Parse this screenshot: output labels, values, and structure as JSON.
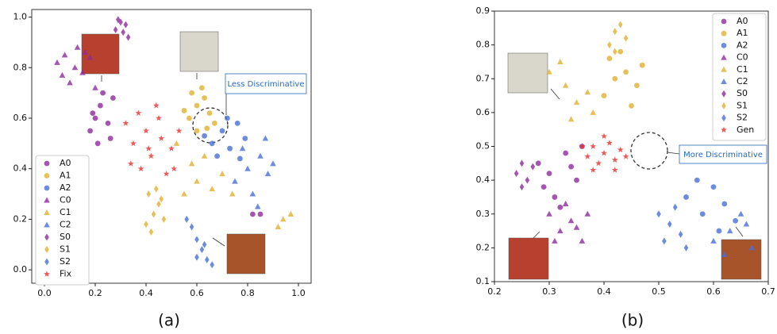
{
  "chart_data": [
    {
      "type": "scatter",
      "panel_label": "(a)",
      "annotation": "Less Discriminative",
      "legend": "lower left",
      "xlim": [
        -0.05,
        1.05
      ],
      "ylim": [
        -0.053,
        1.03
      ],
      "xticks": [
        {
          "value": 0,
          "label": "0.0"
        },
        {
          "value": 0.2,
          "label": "0.2"
        },
        {
          "value": 0.4,
          "label": "0.4"
        },
        {
          "value": 0.6,
          "label": "0.6"
        },
        {
          "value": 0.8,
          "label": "0.8"
        },
        {
          "value": 1,
          "label": "1.0"
        }
      ],
      "yticks": [
        {
          "value": 0,
          "label": "0.0"
        },
        {
          "value": 0.2,
          "label": "0.2"
        },
        {
          "value": 0.4,
          "label": "0.4"
        },
        {
          "value": 0.6,
          "label": "0.6"
        },
        {
          "value": 0.8,
          "label": "0.8"
        },
        {
          "value": 1,
          "label": "1.0"
        }
      ],
      "series": [
        {
          "name": "A0",
          "color": "#8e2a9e",
          "marker": "o",
          "x": [
            0.2,
            0.22,
            0.25,
            0.18,
            0.27,
            0.23,
            0.19,
            0.26,
            0.21,
            0.82,
            0.85
          ],
          "y": [
            0.6,
            0.65,
            0.58,
            0.55,
            0.68,
            0.7,
            0.62,
            0.52,
            0.5,
            0.22,
            0.22
          ]
        },
        {
          "name": "A1",
          "color": "#e0b030",
          "marker": "o",
          "x": [
            0.57,
            0.6,
            0.63,
            0.65,
            0.58,
            0.62,
            0.67,
            0.55,
            0.6,
            0.64
          ],
          "y": [
            0.6,
            0.65,
            0.68,
            0.62,
            0.7,
            0.72,
            0.58,
            0.63,
            0.55,
            0.56
          ]
        },
        {
          "name": "A2",
          "color": "#4a6fd6",
          "marker": "o",
          "x": [
            0.66,
            0.7,
            0.73,
            0.76,
            0.79,
            0.68,
            0.72,
            0.77,
            0.63
          ],
          "y": [
            0.5,
            0.55,
            0.48,
            0.58,
            0.52,
            0.45,
            0.6,
            0.44,
            0.53
          ]
        },
        {
          "name": "C0",
          "color": "#8e2a9e",
          "marker": "^",
          "x": [
            0.05,
            0.08,
            0.12,
            0.15,
            0.1,
            0.18,
            0.07,
            0.13,
            0.2,
            0.16
          ],
          "y": [
            0.82,
            0.85,
            0.8,
            0.78,
            0.74,
            0.84,
            0.77,
            0.88,
            0.72,
            0.86
          ]
        },
        {
          "name": "C1",
          "color": "#e0b030",
          "marker": "^",
          "x": [
            0.55,
            0.6,
            0.63,
            0.7,
            0.58,
            0.66,
            0.74,
            0.94,
            0.97,
            0.92,
            0.52
          ],
          "y": [
            0.3,
            0.35,
            0.45,
            0.38,
            0.42,
            0.32,
            0.3,
            0.2,
            0.22,
            0.17,
            0.5
          ]
        },
        {
          "name": "C2",
          "color": "#4a6fd6",
          "marker": "^",
          "x": [
            0.75,
            0.8,
            0.85,
            0.88,
            0.82,
            0.78,
            0.9,
            0.84,
            0.87
          ],
          "y": [
            0.35,
            0.4,
            0.45,
            0.38,
            0.3,
            0.48,
            0.42,
            0.25,
            0.52
          ]
        },
        {
          "name": "S0",
          "color": "#8e2a9e",
          "marker": "d",
          "x": [
            0.28,
            0.3,
            0.31,
            0.29,
            0.32,
            0.33
          ],
          "y": [
            0.95,
            0.98,
            0.94,
            0.99,
            0.97,
            0.92
          ]
        },
        {
          "name": "S1",
          "color": "#e0b030",
          "marker": "d",
          "x": [
            0.4,
            0.43,
            0.45,
            0.41,
            0.47,
            0.44,
            0.42,
            0.46
          ],
          "y": [
            0.18,
            0.22,
            0.26,
            0.3,
            0.2,
            0.32,
            0.15,
            0.28
          ]
        },
        {
          "name": "S2",
          "color": "#4a6fd6",
          "marker": "d",
          "x": [
            0.56,
            0.58,
            0.6,
            0.62,
            0.64,
            0.66,
            0.63,
            0.6
          ],
          "y": [
            0.2,
            0.17,
            0.12,
            0.08,
            0.04,
            0.02,
            0.1,
            0.05
          ]
        },
        {
          "name": "Fix",
          "color": "#e83030",
          "marker": "*",
          "x": [
            0.35,
            0.4,
            0.45,
            0.5,
            0.38,
            0.42,
            0.48,
            0.32,
            0.53,
            0.44,
            0.37,
            0.46,
            0.41,
            0.34,
            0.51
          ],
          "y": [
            0.5,
            0.55,
            0.6,
            0.48,
            0.4,
            0.45,
            0.38,
            0.58,
            0.55,
            0.65,
            0.62,
            0.52,
            0.48,
            0.42,
            0.4
          ]
        }
      ]
    },
    {
      "type": "scatter",
      "panel_label": "(b)",
      "annotation": "More Discriminative",
      "legend": "upper right",
      "xlim": [
        0.2,
        0.7
      ],
      "ylim": [
        0.1,
        0.9
      ],
      "xticks": [
        0.2,
        0.3,
        0.4,
        0.5,
        0.6,
        0.7
      ],
      "yticks": [
        0.1,
        0.2,
        0.3,
        0.4,
        0.5,
        0.6,
        0.7,
        0.8,
        0.9
      ],
      "series": [
        {
          "name": "A0",
          "color": "#8e2a9e",
          "marker": "o",
          "x": [
            0.28,
            0.3,
            0.33,
            0.35,
            0.31,
            0.29,
            0.36,
            0.34,
            0.32
          ],
          "y": [
            0.45,
            0.42,
            0.48,
            0.4,
            0.35,
            0.38,
            0.5,
            0.44,
            0.32
          ]
        },
        {
          "name": "A1",
          "color": "#e0b030",
          "marker": "o",
          "x": [
            0.4,
            0.42,
            0.44,
            0.46,
            0.41,
            0.45,
            0.43,
            0.47
          ],
          "y": [
            0.65,
            0.7,
            0.72,
            0.68,
            0.76,
            0.62,
            0.78,
            0.74
          ]
        },
        {
          "name": "A2",
          "color": "#4a6fd6",
          "marker": "o",
          "x": [
            0.55,
            0.58,
            0.6,
            0.62,
            0.64,
            0.57,
            0.61
          ],
          "y": [
            0.35,
            0.3,
            0.38,
            0.33,
            0.28,
            0.4,
            0.25
          ]
        },
        {
          "name": "C0",
          "color": "#8e2a9e",
          "marker": "^",
          "x": [
            0.3,
            0.32,
            0.34,
            0.36,
            0.33,
            0.35,
            0.31,
            0.37
          ],
          "y": [
            0.3,
            0.25,
            0.28,
            0.22,
            0.33,
            0.26,
            0.22,
            0.3
          ]
        },
        {
          "name": "C1",
          "color": "#e0b030",
          "marker": "^",
          "x": [
            0.3,
            0.33,
            0.35,
            0.38,
            0.32,
            0.37,
            0.34
          ],
          "y": [
            0.72,
            0.68,
            0.63,
            0.6,
            0.75,
            0.66,
            0.58
          ]
        },
        {
          "name": "C2",
          "color": "#4a6fd6",
          "marker": "^",
          "x": [
            0.6,
            0.63,
            0.65,
            0.67,
            0.62,
            0.66
          ],
          "y": [
            0.22,
            0.25,
            0.3,
            0.2,
            0.18,
            0.27
          ]
        },
        {
          "name": "S0",
          "color": "#8e2a9e",
          "marker": "d",
          "x": [
            0.24,
            0.25,
            0.26,
            0.27,
            0.25
          ],
          "y": [
            0.42,
            0.45,
            0.4,
            0.44,
            0.38
          ]
        },
        {
          "name": "S1",
          "color": "#e0b030",
          "marker": "d",
          "x": [
            0.41,
            0.42,
            0.43,
            0.44,
            0.42
          ],
          "y": [
            0.8,
            0.84,
            0.86,
            0.82,
            0.78
          ]
        },
        {
          "name": "S2",
          "color": "#4a6fd6",
          "marker": "d",
          "x": [
            0.5,
            0.52,
            0.54,
            0.53,
            0.51,
            0.55
          ],
          "y": [
            0.3,
            0.27,
            0.24,
            0.32,
            0.22,
            0.2
          ]
        },
        {
          "name": "Gen",
          "color": "#e83030",
          "marker": "*",
          "x": [
            0.4,
            0.38,
            0.42,
            0.39,
            0.41,
            0.37,
            0.43,
            0.4,
            0.38,
            0.42,
            0.36,
            0.44
          ],
          "y": [
            0.48,
            0.5,
            0.46,
            0.45,
            0.51,
            0.47,
            0.49,
            0.53,
            0.43,
            0.43,
            0.5,
            0.47
          ]
        }
      ]
    }
  ]
}
